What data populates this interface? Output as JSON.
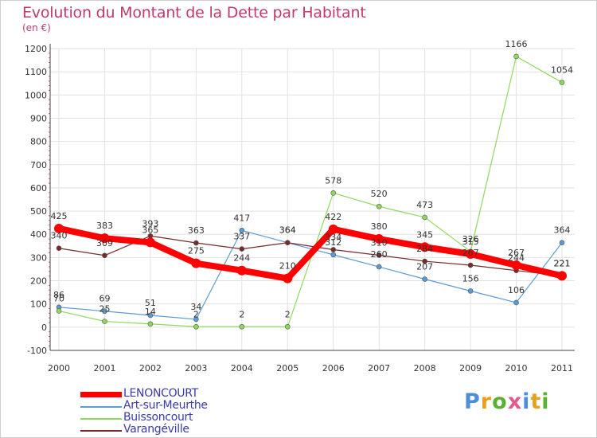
{
  "title": "Evolution du Montant de la Dette par Habitant",
  "subtitle": "(en €)",
  "logo": {
    "text": "Proxiti",
    "colors": [
      "#4a8fd8",
      "#e8a020",
      "#5ab030",
      "#e05a8a",
      "#4a8fd8",
      "#e8a020",
      "#5ab030"
    ]
  },
  "chart_data": {
    "type": "line",
    "x": [
      "2000",
      "2001",
      "2002",
      "2003",
      "2004",
      "2005",
      "2006",
      "2007",
      "2008",
      "2009",
      "2010",
      "2011"
    ],
    "ylim": [
      -100,
      1200
    ],
    "yticks": [
      -100,
      0,
      100,
      200,
      300,
      400,
      500,
      600,
      700,
      800,
      900,
      1000,
      1100,
      1200
    ],
    "grid": true,
    "legend_position": "bottom-left",
    "series": [
      {
        "name": "LENONCOURT",
        "color": "#ff0000",
        "bold": true,
        "values": [
          425,
          383,
          365,
          275,
          244,
          210,
          422,
          380,
          345,
          315,
          267,
          221
        ]
      },
      {
        "name": "Art-sur-Meurthe",
        "color": "#5b9bd5",
        "values": [
          86,
          69,
          51,
          34,
          417,
          364,
          312,
          260,
          207,
          156,
          106,
          364
        ]
      },
      {
        "name": "Buissoncourt",
        "color": "#90d85c",
        "values": [
          70,
          25,
          14,
          2,
          2,
          2,
          578,
          520,
          473,
          326,
          1166,
          1054
        ]
      },
      {
        "name": "Varangéville",
        "color": "#7a2a2a",
        "values": [
          340,
          309,
          393,
          363,
          337,
          364,
          334,
          310,
          284,
          267,
          244,
          221
        ]
      }
    ]
  }
}
